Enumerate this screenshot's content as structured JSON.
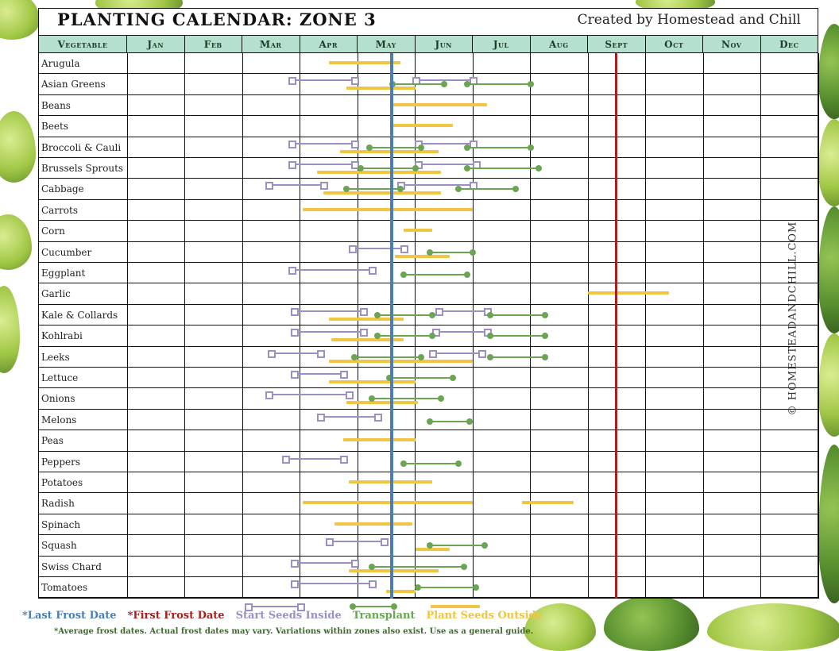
{
  "header": {
    "title": "PLANTING CALENDAR: ZONE 3",
    "credit": "Created by Homestead and Chill"
  },
  "watermark": "© HOMESTEADANDCHILL.COM",
  "legend": {
    "last_frost": "*Last Frost Date",
    "first_frost": "*First Frost Date",
    "start_inside": "Start Seeds Inside",
    "transplant": "Transplant",
    "plant_outside": "Plant Seeds Outside",
    "note": "*Average frost dates. Actual frost dates may vary. Variations within zones also exist. Use as a general guide."
  },
  "colors": {
    "header_bg": "#b5e0cd",
    "last_frost": "#4a7fb5",
    "first_frost": "#a5211d",
    "start_inside": "#9b8fc6",
    "transplant": "#6aa552",
    "plant_outside": "#efc541"
  },
  "chart_data": {
    "type": "gantt",
    "title": "PLANTING CALENDAR: ZONE 3",
    "categories_header": "Vegetable",
    "months": [
      "Jan",
      "Feb",
      "Mar",
      "Apr",
      "May",
      "Jun",
      "Jul",
      "Aug",
      "Sept",
      "Oct",
      "Nov",
      "Dec"
    ],
    "last_frost_month": 5.6,
    "first_frost_month": 9.5,
    "note": "month values are fractional positions (1.0 = start of Jan, 13.0 = end of Dec)",
    "rows": [
      {
        "name": "Arugula",
        "outside": [
          [
            4.5,
            5.75
          ]
        ]
      },
      {
        "name": "Asian Greens",
        "inside": [
          [
            3.85,
            4.95
          ],
          [
            6.0,
            7.0
          ]
        ],
        "transplant": [
          [
            5.6,
            6.5
          ],
          [
            6.9,
            8.0
          ]
        ],
        "outside": [
          [
            4.8,
            6.0
          ]
        ]
      },
      {
        "name": "Beans",
        "outside": [
          [
            5.6,
            7.25
          ]
        ]
      },
      {
        "name": "Beets",
        "outside": [
          [
            5.6,
            6.65
          ]
        ]
      },
      {
        "name": "Broccoli & Cauli",
        "inside": [
          [
            3.85,
            4.95
          ],
          [
            6.05,
            7.0
          ]
        ],
        "transplant": [
          [
            5.2,
            6.1
          ],
          [
            6.9,
            8.0
          ]
        ],
        "outside": [
          [
            4.7,
            6.4
          ]
        ]
      },
      {
        "name": "Brussels Sprouts",
        "inside": [
          [
            3.85,
            4.95
          ],
          [
            6.05,
            7.05
          ]
        ],
        "transplant": [
          [
            5.05,
            6.0
          ],
          [
            6.9,
            8.15
          ]
        ],
        "outside": [
          [
            4.3,
            6.45
          ]
        ]
      },
      {
        "name": "Cabbage",
        "inside": [
          [
            3.45,
            4.4
          ],
          [
            5.75,
            7.0
          ]
        ],
        "transplant": [
          [
            4.8,
            5.75
          ],
          [
            6.75,
            7.75
          ]
        ],
        "outside": [
          [
            4.4,
            6.45
          ]
        ]
      },
      {
        "name": "Carrots",
        "outside": [
          [
            4.05,
            7.0
          ]
        ]
      },
      {
        "name": "Corn",
        "outside": [
          [
            5.8,
            6.3
          ]
        ]
      },
      {
        "name": "Cucumber",
        "inside": [
          [
            4.9,
            5.8
          ]
        ],
        "transplant": [
          [
            6.25,
            7.0
          ]
        ],
        "outside": [
          [
            5.65,
            6.6
          ]
        ]
      },
      {
        "name": "Eggplant",
        "inside": [
          [
            3.85,
            5.25
          ]
        ],
        "transplant": [
          [
            5.8,
            6.9
          ]
        ]
      },
      {
        "name": "Garlic",
        "outside": [
          [
            9.0,
            10.4
          ]
        ]
      },
      {
        "name": "Kale & Collards",
        "inside": [
          [
            3.9,
            5.1
          ],
          [
            6.4,
            7.25
          ]
        ],
        "transplant": [
          [
            5.35,
            6.3
          ],
          [
            7.3,
            8.25
          ]
        ],
        "outside": [
          [
            4.5,
            5.8
          ]
        ]
      },
      {
        "name": "Kohlrabi",
        "inside": [
          [
            3.9,
            5.1
          ],
          [
            6.35,
            7.25
          ]
        ],
        "transplant": [
          [
            5.35,
            6.3
          ],
          [
            7.3,
            8.25
          ]
        ],
        "outside": [
          [
            4.55,
            5.8
          ]
        ]
      },
      {
        "name": "Leeks",
        "inside": [
          [
            3.5,
            4.35
          ],
          [
            6.3,
            7.15
          ]
        ],
        "transplant": [
          [
            4.95,
            6.1
          ],
          [
            7.3,
            8.25
          ]
        ],
        "outside": [
          [
            4.5,
            7.0
          ]
        ]
      },
      {
        "name": "Lettuce",
        "inside": [
          [
            3.9,
            4.75
          ]
        ],
        "transplant": [
          [
            5.55,
            6.65
          ]
        ],
        "outside": [
          [
            4.5,
            6.0
          ]
        ]
      },
      {
        "name": "Onions",
        "inside": [
          [
            3.45,
            4.85
          ]
        ],
        "transplant": [
          [
            5.25,
            6.45
          ]
        ],
        "outside": [
          [
            4.8,
            6.05
          ]
        ]
      },
      {
        "name": "Melons",
        "inside": [
          [
            4.35,
            5.35
          ]
        ],
        "transplant": [
          [
            6.25,
            6.95
          ]
        ]
      },
      {
        "name": "Peas",
        "outside": [
          [
            4.75,
            6.0
          ]
        ]
      },
      {
        "name": "Pepper",
        "inside": [
          [
            3.75,
            4.75
          ]
        ],
        "transplant": [
          [
            5.8,
            6.75
          ]
        ]
      },
      {
        "name": "Potatoes",
        "outside": [
          [
            4.85,
            6.3
          ]
        ]
      },
      {
        "name": "Radish",
        "outside": [
          [
            4.05,
            7.0
          ],
          [
            7.85,
            8.75
          ]
        ]
      },
      {
        "name": "Spinach",
        "outside": [
          [
            4.6,
            5.95
          ]
        ]
      },
      {
        "name": "Squash",
        "inside": [
          [
            4.5,
            5.45
          ]
        ],
        "transplant": [
          [
            6.25,
            7.2
          ]
        ],
        "outside": [
          [
            6.0,
            6.6
          ]
        ]
      },
      {
        "name": "Swiss Chard",
        "inside": [
          [
            3.9,
            4.95
          ]
        ],
        "transplant": [
          [
            5.25,
            6.85
          ]
        ],
        "outside": [
          [
            4.85,
            6.4
          ]
        ]
      },
      {
        "name": "Tomatoes",
        "inside": [
          [
            3.9,
            5.25
          ]
        ],
        "transplant": [
          [
            6.05,
            7.05
          ]
        ],
        "outside": [
          [
            5.5,
            6.0
          ]
        ]
      }
    ]
  },
  "table": {
    "header_first": "Vegetable",
    "vegetables": [
      "Arugula",
      "Asian Greens",
      "Beans",
      "Beets",
      "Broccoli & Cauli",
      "Brussels Sprouts",
      "Cabbage",
      "Carrots",
      "Corn",
      "Cucumber",
      "Eggplant",
      "Garlic",
      "Kale & Collards",
      "Kohlrabi",
      "Leeks",
      "Lettuce",
      "Onions",
      "Melons",
      "Peas",
      "Peppers",
      "Potatoes",
      "Radish",
      "Spinach",
      "Squash",
      "Swiss Chard",
      "Tomatoes"
    ],
    "months": [
      "Jan",
      "Feb",
      "Mar",
      "Apr",
      "May",
      "Jun",
      "Jul",
      "Aug",
      "Sept",
      "Oct",
      "Nov",
      "Dec"
    ]
  }
}
